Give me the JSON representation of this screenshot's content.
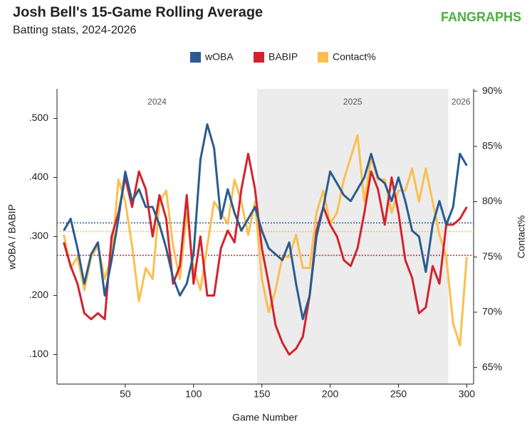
{
  "chart_data": {
    "type": "line",
    "title": "Josh Bell's 15-Game Rolling Average",
    "subtitle": "Batting stats, 2024-2026",
    "brand": "FANGRAPHS",
    "xlabel": "Game Number",
    "ylabel": "wOBA / BABIP",
    "y2label": "Contact%",
    "xlim": [
      0,
      305
    ],
    "xticks": [
      50,
      100,
      150,
      200,
      250,
      300
    ],
    "ylim": [
      0.05,
      0.55
    ],
    "yticks": [
      {
        "value": 0.1,
        "label": ".100"
      },
      {
        "value": 0.2,
        "label": ".200"
      },
      {
        "value": 0.3,
        "label": ".300"
      },
      {
        "value": 0.4,
        "label": ".400"
      },
      {
        "value": 0.5,
        "label": ".500"
      }
    ],
    "y2lim": [
      63.5,
      90.2
    ],
    "y2ticks": [
      {
        "value": 65,
        "label": "65%"
      },
      {
        "value": 70,
        "label": "70%"
      },
      {
        "value": 75,
        "label": "75%"
      },
      {
        "value": 80,
        "label": "80%"
      },
      {
        "value": 85,
        "label": "85%"
      },
      {
        "value": 90,
        "label": "90%"
      }
    ],
    "seasons": [
      {
        "label": "2024",
        "start": 0,
        "end": 146.5,
        "shaded": false
      },
      {
        "label": "2025",
        "start": 146.5,
        "end": 286.5,
        "shaded": true
      },
      {
        "label": "2026",
        "start": 286.5,
        "end": 305,
        "shaded": false
      }
    ],
    "x": [
      5,
      10,
      15,
      20,
      25,
      30,
      35,
      40,
      45,
      50,
      55,
      60,
      65,
      70,
      75,
      80,
      85,
      90,
      95,
      100,
      105,
      110,
      115,
      120,
      125,
      130,
      135,
      140,
      145,
      150,
      155,
      160,
      165,
      170,
      175,
      180,
      185,
      190,
      195,
      200,
      205,
      210,
      215,
      220,
      225,
      230,
      235,
      240,
      245,
      250,
      255,
      260,
      265,
      270,
      275,
      280,
      285,
      290,
      295,
      300
    ],
    "series": [
      {
        "name": "wOBA",
        "color": "#2a5c8f",
        "average": 0.323,
        "values": [
          0.31,
          0.33,
          0.28,
          0.22,
          0.27,
          0.29,
          0.2,
          0.26,
          0.33,
          0.41,
          0.36,
          0.38,
          0.35,
          0.35,
          0.32,
          0.28,
          0.23,
          0.2,
          0.22,
          0.27,
          0.43,
          0.49,
          0.45,
          0.33,
          0.38,
          0.34,
          0.31,
          0.33,
          0.35,
          0.31,
          0.28,
          0.27,
          0.26,
          0.29,
          0.22,
          0.16,
          0.2,
          0.3,
          0.35,
          0.41,
          0.39,
          0.37,
          0.36,
          0.38,
          0.4,
          0.44,
          0.4,
          0.39,
          0.36,
          0.4,
          0.36,
          0.31,
          0.3,
          0.24,
          0.32,
          0.36,
          0.32,
          0.35,
          0.44,
          0.42
        ]
      },
      {
        "name": "BABIP",
        "color": "#d1232f",
        "average": 0.268,
        "values": [
          0.29,
          0.25,
          0.22,
          0.17,
          0.16,
          0.17,
          0.16,
          0.3,
          0.34,
          0.4,
          0.35,
          0.41,
          0.38,
          0.3,
          0.37,
          0.33,
          0.22,
          0.25,
          0.37,
          0.22,
          0.3,
          0.2,
          0.2,
          0.28,
          0.31,
          0.29,
          0.38,
          0.44,
          0.38,
          0.28,
          0.22,
          0.15,
          0.12,
          0.1,
          0.11,
          0.13,
          0.2,
          0.31,
          0.35,
          0.32,
          0.3,
          0.26,
          0.25,
          0.28,
          0.34,
          0.41,
          0.38,
          0.32,
          0.4,
          0.34,
          0.26,
          0.23,
          0.17,
          0.18,
          0.25,
          0.22,
          0.32,
          0.32,
          0.33,
          0.35
        ]
      },
      {
        "name": "Contact%",
        "color": "#fbbf4f",
        "axis": "y2",
        "average": 77.3,
        "values": [
          77,
          74,
          75,
          72,
          75,
          76,
          73,
          75,
          82,
          80,
          76,
          71,
          74,
          73,
          80,
          81,
          76,
          73,
          79,
          74,
          72,
          76,
          80,
          79,
          78,
          82,
          80,
          77,
          80,
          73,
          70,
          72,
          75,
          75,
          77,
          74,
          74,
          79,
          81,
          78,
          79,
          82,
          84,
          86,
          80,
          84,
          82,
          82,
          79,
          81,
          81,
          83,
          80,
          83,
          80,
          77,
          75,
          69,
          67,
          75
        ]
      }
    ]
  }
}
